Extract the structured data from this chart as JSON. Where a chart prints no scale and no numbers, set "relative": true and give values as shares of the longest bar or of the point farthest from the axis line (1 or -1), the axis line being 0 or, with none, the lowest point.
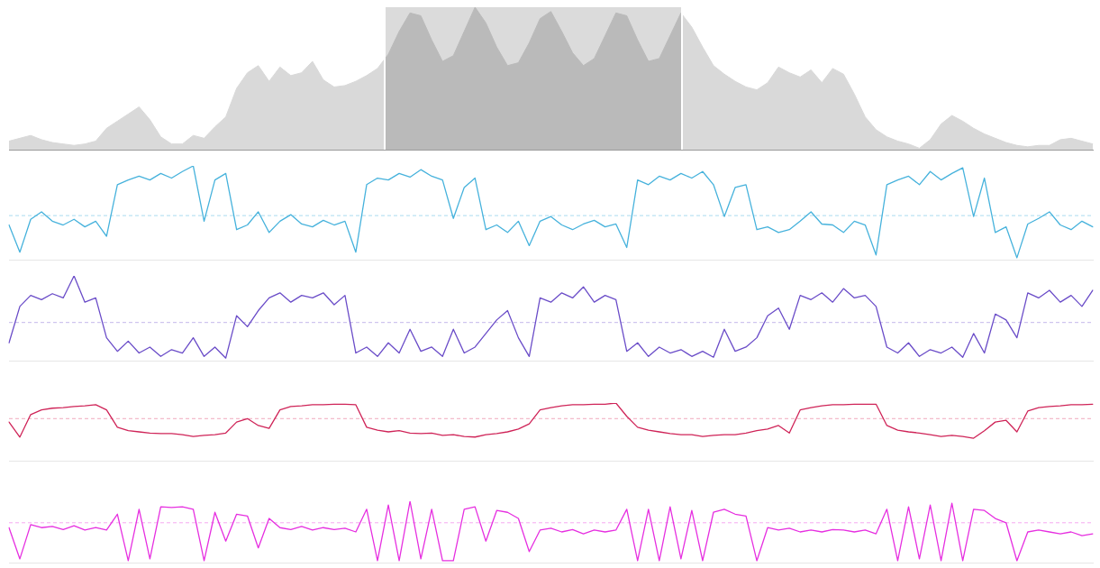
{
  "chart_data": [
    {
      "type": "area",
      "relative": true,
      "color": "#d9d9d9",
      "marker": "none",
      "categories": [
        null,
        null,
        null,
        null,
        null,
        null,
        null,
        null,
        null,
        null,
        null,
        null,
        null,
        null,
        null,
        null,
        null,
        null,
        null,
        null,
        null,
        null,
        null,
        null,
        null,
        null,
        null,
        null,
        null,
        null,
        null,
        null,
        null,
        null,
        null,
        null,
        null,
        null,
        null,
        null,
        null,
        null,
        null,
        null,
        null,
        null,
        null,
        null,
        null,
        null,
        null,
        null,
        null,
        null,
        null,
        null,
        null,
        null,
        null,
        null,
        null,
        null,
        null,
        null,
        null,
        null,
        null,
        null,
        null,
        null,
        null,
        null,
        null,
        null,
        null,
        null,
        null,
        null,
        null,
        null,
        null,
        null,
        null,
        null,
        null,
        null,
        null,
        null,
        null,
        null,
        null,
        null,
        null,
        null,
        null,
        null,
        null,
        null,
        null,
        null,
        null
      ],
      "values": [
        0.06,
        0.08,
        0.1,
        0.07,
        0.05,
        0.04,
        0.03,
        0.04,
        0.06,
        0.15,
        0.2,
        0.25,
        0.3,
        0.21,
        0.09,
        0.04,
        0.04,
        0.1,
        0.08,
        0.16,
        0.23,
        0.43,
        0.54,
        0.59,
        0.48,
        0.58,
        0.52,
        0.54,
        0.62,
        0.49,
        0.44,
        0.45,
        0.48,
        0.52,
        0.57,
        0.67,
        0.83,
        0.96,
        0.94,
        0.77,
        0.62,
        0.66,
        0.83,
        1,
        0.89,
        0.72,
        0.59,
        0.61,
        0.75,
        0.92,
        0.97,
        0.83,
        0.68,
        0.59,
        0.64,
        0.8,
        0.96,
        0.94,
        0.77,
        0.62,
        0.64,
        0.8,
        0.96,
        0.86,
        0.72,
        0.59,
        0.53,
        0.48,
        0.44,
        0.42,
        0.47,
        0.58,
        0.54,
        0.51,
        0.56,
        0.47,
        0.57,
        0.53,
        0.39,
        0.23,
        0.14,
        0.09,
        0.06,
        0.04,
        0.01,
        0.07,
        0.18,
        0.24,
        0.2,
        0.15,
        0.11,
        0.08,
        0.05,
        0.03,
        0.02,
        0.03,
        0.03,
        0.07,
        0.08,
        0.06,
        0.04
      ]
    },
    {
      "type": "line",
      "relative": true,
      "color": "#46b2dc",
      "marker": "none",
      "categories": [
        null,
        null,
        null,
        null,
        null,
        null,
        null,
        null,
        null,
        null,
        null,
        null,
        null,
        null,
        null,
        null,
        null,
        null,
        null,
        null,
        null,
        null,
        null,
        null,
        null,
        null,
        null,
        null,
        null,
        null,
        null,
        null,
        null,
        null,
        null,
        null,
        null,
        null,
        null,
        null,
        null,
        null,
        null,
        null,
        null,
        null,
        null,
        null,
        null,
        null,
        null,
        null,
        null,
        null,
        null,
        null,
        null,
        null,
        null,
        null,
        null,
        null,
        null,
        null,
        null,
        null,
        null,
        null,
        null,
        null,
        null,
        null,
        null,
        null,
        null,
        null,
        null,
        null,
        null,
        null,
        null,
        null,
        null,
        null,
        null,
        null,
        null,
        null,
        null,
        null,
        null,
        null,
        null,
        null,
        null,
        null,
        null,
        null,
        null,
        null,
        null
      ],
      "values": [
        0.37,
        0.08,
        0.43,
        0.51,
        0.41,
        0.37,
        0.43,
        0.35,
        0.41,
        0.25,
        0.8,
        0.85,
        0.89,
        0.85,
        0.92,
        0.87,
        0.94,
        1,
        0.41,
        0.85,
        0.92,
        0.32,
        0.37,
        0.51,
        0.29,
        0.41,
        0.48,
        0.38,
        0.35,
        0.42,
        0.37,
        0.41,
        0.08,
        0.8,
        0.87,
        0.85,
        0.92,
        0.88,
        0.96,
        0.89,
        0.85,
        0.44,
        0.77,
        0.87,
        0.32,
        0.37,
        0.29,
        0.41,
        0.15,
        0.41,
        0.46,
        0.37,
        0.32,
        0.38,
        0.42,
        0.35,
        0.38,
        0.13,
        0.85,
        0.8,
        0.89,
        0.85,
        0.92,
        0.87,
        0.94,
        0.8,
        0.46,
        0.77,
        0.8,
        0.32,
        0.35,
        0.29,
        0.32,
        0.41,
        0.51,
        0.38,
        0.37,
        0.29,
        0.41,
        0.37,
        0.05,
        0.8,
        0.85,
        0.89,
        0.8,
        0.94,
        0.85,
        0.92,
        0.98,
        0.46,
        0.87,
        0.29,
        0.35,
        0.02,
        0.38,
        0.44,
        0.51,
        0.37,
        0.32,
        0.41,
        0.35
      ],
      "ref_lines": [
        {
          "axis": "y",
          "value": 0.47,
          "color": "#a9dcef",
          "line_style": "dashed"
        }
      ]
    },
    {
      "type": "line",
      "relative": true,
      "color": "#6a4cc8",
      "marker": "none",
      "categories": [
        null,
        null,
        null,
        null,
        null,
        null,
        null,
        null,
        null,
        null,
        null,
        null,
        null,
        null,
        null,
        null,
        null,
        null,
        null,
        null,
        null,
        null,
        null,
        null,
        null,
        null,
        null,
        null,
        null,
        null,
        null,
        null,
        null,
        null,
        null,
        null,
        null,
        null,
        null,
        null,
        null,
        null,
        null,
        null,
        null,
        null,
        null,
        null,
        null,
        null,
        null,
        null,
        null,
        null,
        null,
        null,
        null,
        null,
        null,
        null,
        null,
        null,
        null,
        null,
        null,
        null,
        null,
        null,
        null,
        null,
        null,
        null,
        null,
        null,
        null,
        null,
        null,
        null,
        null,
        null,
        null,
        null,
        null,
        null,
        null,
        null,
        null,
        null,
        null,
        null,
        null,
        null,
        null,
        null,
        null,
        null,
        null,
        null,
        null,
        null,
        null
      ],
      "values": [
        0.21,
        0.64,
        0.77,
        0.72,
        0.79,
        0.74,
        1,
        0.69,
        0.74,
        0.27,
        0.11,
        0.23,
        0.09,
        0.16,
        0.05,
        0.13,
        0.09,
        0.27,
        0.05,
        0.16,
        0.03,
        0.53,
        0.4,
        0.59,
        0.74,
        0.8,
        0.69,
        0.77,
        0.74,
        0.8,
        0.66,
        0.77,
        0.09,
        0.16,
        0.05,
        0.21,
        0.09,
        0.37,
        0.11,
        0.16,
        0.05,
        0.37,
        0.09,
        0.16,
        0.32,
        0.48,
        0.59,
        0.27,
        0.05,
        0.74,
        0.69,
        0.8,
        0.74,
        0.87,
        0.69,
        0.77,
        0.72,
        0.11,
        0.21,
        0.05,
        0.16,
        0.09,
        0.13,
        0.05,
        0.11,
        0.04,
        0.37,
        0.11,
        0.16,
        0.27,
        0.53,
        0.62,
        0.37,
        0.77,
        0.72,
        0.8,
        0.69,
        0.85,
        0.74,
        0.77,
        0.64,
        0.16,
        0.09,
        0.21,
        0.05,
        0.13,
        0.09,
        0.16,
        0.04,
        0.32,
        0.09,
        0.55,
        0.48,
        0.27,
        0.8,
        0.74,
        0.83,
        0.69,
        0.77,
        0.64,
        0.83
      ],
      "ref_lines": [
        {
          "axis": "y",
          "value": 0.45,
          "color": "#c3b7ea",
          "line_style": "dashed"
        }
      ]
    },
    {
      "type": "line",
      "relative": true,
      "color": "#cf2458",
      "marker": "none",
      "categories": [
        null,
        null,
        null,
        null,
        null,
        null,
        null,
        null,
        null,
        null,
        null,
        null,
        null,
        null,
        null,
        null,
        null,
        null,
        null,
        null,
        null,
        null,
        null,
        null,
        null,
        null,
        null,
        null,
        null,
        null,
        null,
        null,
        null,
        null,
        null,
        null,
        null,
        null,
        null,
        null,
        null,
        null,
        null,
        null,
        null,
        null,
        null,
        null,
        null,
        null,
        null,
        null,
        null,
        null,
        null,
        null,
        null,
        null,
        null,
        null,
        null,
        null,
        null,
        null,
        null,
        null,
        null,
        null,
        null,
        null,
        null,
        null,
        null,
        null,
        null,
        null,
        null,
        null,
        null,
        null,
        null,
        null,
        null,
        null,
        null,
        null,
        null,
        null,
        null,
        null,
        null,
        null,
        null,
        null,
        null,
        null,
        null,
        null,
        null,
        null,
        null
      ],
      "values": [
        0.67,
        0.41,
        0.8,
        0.88,
        0.91,
        0.92,
        0.94,
        0.95,
        0.97,
        0.88,
        0.58,
        0.52,
        0.5,
        0.48,
        0.47,
        0.47,
        0.45,
        0.42,
        0.44,
        0.45,
        0.48,
        0.67,
        0.73,
        0.61,
        0.56,
        0.88,
        0.94,
        0.95,
        0.97,
        0.97,
        0.98,
        0.98,
        0.97,
        0.58,
        0.53,
        0.5,
        0.52,
        0.48,
        0.47,
        0.48,
        0.44,
        0.45,
        0.42,
        0.41,
        0.45,
        0.47,
        0.5,
        0.55,
        0.64,
        0.88,
        0.92,
        0.95,
        0.97,
        0.97,
        0.98,
        0.98,
        1,
        0.77,
        0.58,
        0.53,
        0.5,
        0.47,
        0.45,
        0.45,
        0.42,
        0.44,
        0.45,
        0.45,
        0.48,
        0.52,
        0.55,
        0.61,
        0.48,
        0.88,
        0.92,
        0.95,
        0.97,
        0.97,
        0.98,
        0.98,
        0.98,
        0.61,
        0.53,
        0.5,
        0.48,
        0.45,
        0.42,
        0.44,
        0.42,
        0.39,
        0.52,
        0.67,
        0.7,
        0.5,
        0.86,
        0.92,
        0.94,
        0.95,
        0.97,
        0.97,
        0.98
      ],
      "ref_lines": [
        {
          "axis": "y",
          "value": 0.73,
          "color": "#f0a8bd",
          "line_style": "dashed"
        }
      ]
    },
    {
      "type": "line",
      "relative": true,
      "color": "#e62fe0",
      "marker": "none",
      "categories": [
        null,
        null,
        null,
        null,
        null,
        null,
        null,
        null,
        null,
        null,
        null,
        null,
        null,
        null,
        null,
        null,
        null,
        null,
        null,
        null,
        null,
        null,
        null,
        null,
        null,
        null,
        null,
        null,
        null,
        null,
        null,
        null,
        null,
        null,
        null,
        null,
        null,
        null,
        null,
        null,
        null,
        null,
        null,
        null,
        null,
        null,
        null,
        null,
        null,
        null,
        null,
        null,
        null,
        null,
        null,
        null,
        null,
        null,
        null,
        null,
        null,
        null,
        null,
        null,
        null,
        null,
        null,
        null,
        null,
        null,
        null,
        null,
        null,
        null,
        null,
        null,
        null,
        null,
        null,
        null,
        null,
        null,
        null,
        null,
        null,
        null,
        null,
        null,
        null,
        null,
        null,
        null,
        null,
        null,
        null,
        null,
        null,
        null,
        null,
        null,
        null
      ],
      "values": [
        0.57,
        0.06,
        0.62,
        0.57,
        0.59,
        0.54,
        0.6,
        0.53,
        0.57,
        0.53,
        0.79,
        0.03,
        0.87,
        0.06,
        0.91,
        0.9,
        0.91,
        0.87,
        0.03,
        0.82,
        0.35,
        0.79,
        0.76,
        0.24,
        0.72,
        0.57,
        0.54,
        0.59,
        0.53,
        0.57,
        0.54,
        0.56,
        0.5,
        0.87,
        0.03,
        0.94,
        0.03,
        1,
        0.06,
        0.87,
        0.03,
        0.03,
        0.87,
        0.91,
        0.35,
        0.85,
        0.82,
        0.72,
        0.18,
        0.53,
        0.56,
        0.5,
        0.54,
        0.47,
        0.53,
        0.5,
        0.53,
        0.87,
        0.03,
        0.87,
        0.03,
        0.91,
        0.06,
        0.85,
        0.03,
        0.82,
        0.87,
        0.79,
        0.76,
        0.03,
        0.57,
        0.53,
        0.56,
        0.5,
        0.53,
        0.5,
        0.54,
        0.53,
        0.5,
        0.53,
        0.47,
        0.87,
        0.03,
        0.91,
        0.06,
        0.94,
        0.03,
        0.97,
        0.03,
        0.87,
        0.85,
        0.72,
        0.65,
        0.03,
        0.5,
        0.53,
        0.5,
        0.47,
        0.5,
        0.44,
        0.47
      ],
      "ref_lines": [
        {
          "axis": "y",
          "value": 0.65,
          "color": "#f4a8f0",
          "line_style": "dashed"
        }
      ]
    }
  ]
}
